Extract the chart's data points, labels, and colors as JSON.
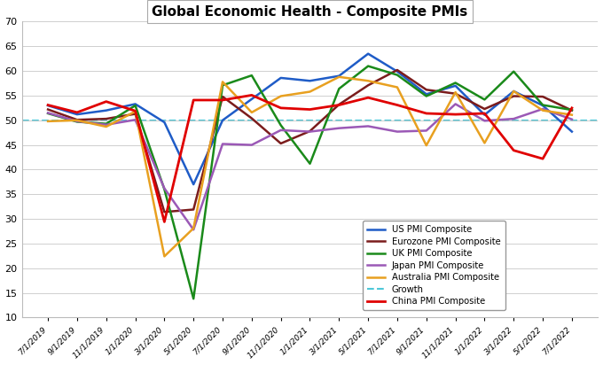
{
  "title": "Global Economic Health - Composite PMIs",
  "ylim": [
    10,
    70
  ],
  "yticks": [
    10,
    15,
    20,
    25,
    30,
    35,
    40,
    45,
    50,
    55,
    60,
    65,
    70
  ],
  "growth_line": 50,
  "x_labels": [
    "7/1/2019",
    "9/1/2019",
    "11/1/2019",
    "1/1/2020",
    "3/1/2020",
    "5/1/2020",
    "7/1/2020",
    "9/1/2020",
    "11/1/2020",
    "1/1/2021",
    "3/1/2021",
    "5/1/2021",
    "7/1/2021",
    "9/1/2021",
    "11/1/2021",
    "1/1/2022",
    "3/1/2022",
    "5/1/2022",
    "7/1/2022"
  ],
  "series": {
    "US PMI Composite": {
      "color": "#1F5CC7",
      "linewidth": 1.8,
      "values": [
        53.0,
        51.2,
        52.0,
        53.3,
        49.6,
        37.0,
        50.0,
        54.3,
        58.6,
        58.0,
        59.0,
        63.5,
        59.9,
        55.3,
        57.0,
        51.1,
        55.9,
        53.0,
        47.7
      ]
    },
    "Eurozone PMI Composite": {
      "color": "#7B1C1C",
      "linewidth": 1.8,
      "values": [
        52.2,
        50.1,
        50.3,
        51.3,
        31.4,
        31.9,
        54.8,
        50.4,
        45.3,
        47.8,
        53.2,
        57.1,
        60.2,
        56.2,
        55.4,
        52.3,
        54.9,
        54.8,
        52.0
      ]
    },
    "UK PMI Composite": {
      "color": "#1A8A1A",
      "linewidth": 1.8,
      "values": [
        51.4,
        49.7,
        49.3,
        53.0,
        36.0,
        13.8,
        57.1,
        59.1,
        49.0,
        41.2,
        56.4,
        61.0,
        59.2,
        54.9,
        57.6,
        54.2,
        59.9,
        53.1,
        52.1
      ]
    },
    "Japan PMI Composite": {
      "color": "#9B59B6",
      "linewidth": 1.8,
      "values": [
        51.5,
        49.8,
        49.1,
        50.1,
        36.2,
        27.8,
        45.2,
        45.0,
        48.0,
        47.7,
        48.4,
        48.8,
        47.7,
        47.9,
        53.3,
        49.9,
        50.3,
        52.3,
        50.2
      ]
    },
    "Australia PMI Composite": {
      "color": "#E8A020",
      "linewidth": 1.8,
      "values": [
        49.8,
        50.0,
        48.7,
        51.8,
        22.4,
        28.1,
        57.8,
        51.6,
        54.9,
        55.8,
        58.8,
        58.0,
        56.7,
        44.9,
        55.7,
        45.4,
        55.9,
        52.0,
        51.1
      ]
    },
    "China PMI Composite": {
      "color": "#E00000",
      "linewidth": 2.0,
      "values": [
        53.1,
        51.6,
        53.8,
        51.9,
        29.4,
        54.1,
        54.1,
        55.1,
        52.5,
        52.2,
        53.1,
        54.6,
        53.1,
        51.4,
        51.2,
        51.4,
        43.9,
        42.2,
        52.5
      ]
    }
  },
  "legend_order": [
    "US PMI Composite",
    "Eurozone PMI Composite",
    "UK PMI Composite",
    "Japan PMI Composite",
    "Australia PMI Composite",
    "Growth",
    "China PMI Composite"
  ],
  "background_color": "#FFFFFF",
  "grid_color": "#C8C8C8"
}
